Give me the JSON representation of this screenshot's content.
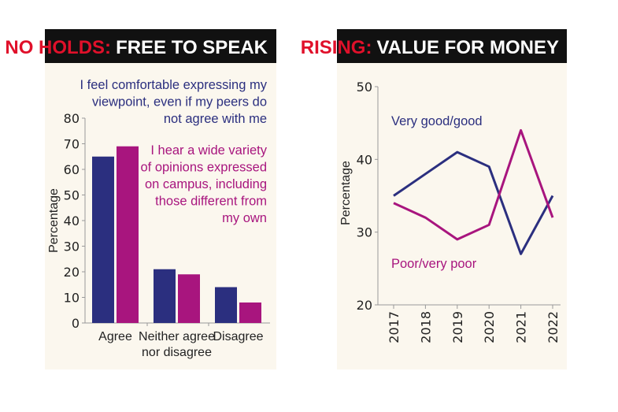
{
  "colors": {
    "series1": "#2b2f7f",
    "series2": "#a8157e",
    "header_bg": "#111111",
    "header_accent": "#e0102a",
    "panel_bg": "#fbf7ee"
  },
  "chart_data": [
    {
      "type": "bar",
      "header": {
        "accent": "NO HOLDS:",
        "title": "FREE TO SPEAK"
      },
      "categories": [
        "Agree",
        "Neither agree nor disagree",
        "Disagree"
      ],
      "category_lines": [
        [
          "Agree"
        ],
        [
          "Neither agree",
          "nor disagree"
        ],
        [
          "Disagree"
        ]
      ],
      "ylabel": "Percentage",
      "ylim": [
        0,
        80
      ],
      "yticks": [
        "0",
        "10",
        "20",
        "30",
        "40",
        "50",
        "60",
        "70",
        "80"
      ],
      "grid": false,
      "series": [
        {
          "name": "I feel comfortable expressing my viewpoint, even if my peers do not agree with me",
          "name_lines": [
            "I feel comfortable expressing my",
            "viewpoint, even if my peers do",
            "not agree with me"
          ],
          "values": [
            65,
            21,
            14
          ]
        },
        {
          "name": "I hear a wide variety of opinions expressed on campus, including those different from my own",
          "name_lines": [
            "I hear a wide variety",
            "of opinions expressed",
            "on campus, including",
            "those different from",
            "my own"
          ],
          "values": [
            69,
            19,
            8
          ]
        }
      ]
    },
    {
      "type": "line",
      "header": {
        "accent": "RISING:",
        "title": "VALUE FOR MONEY"
      },
      "x": [
        "2017",
        "2018",
        "2019",
        "2020",
        "2021",
        "2022"
      ],
      "ylabel": "Percentage",
      "ylim": [
        20,
        50
      ],
      "yticks": [
        "20",
        "30",
        "40",
        "50"
      ],
      "grid": false,
      "series": [
        {
          "name": "Very good/good",
          "values": [
            35,
            38,
            41,
            39,
            27,
            35
          ]
        },
        {
          "name": "Poor/very poor",
          "values": [
            34,
            32,
            29,
            31,
            44,
            32
          ]
        }
      ]
    }
  ]
}
